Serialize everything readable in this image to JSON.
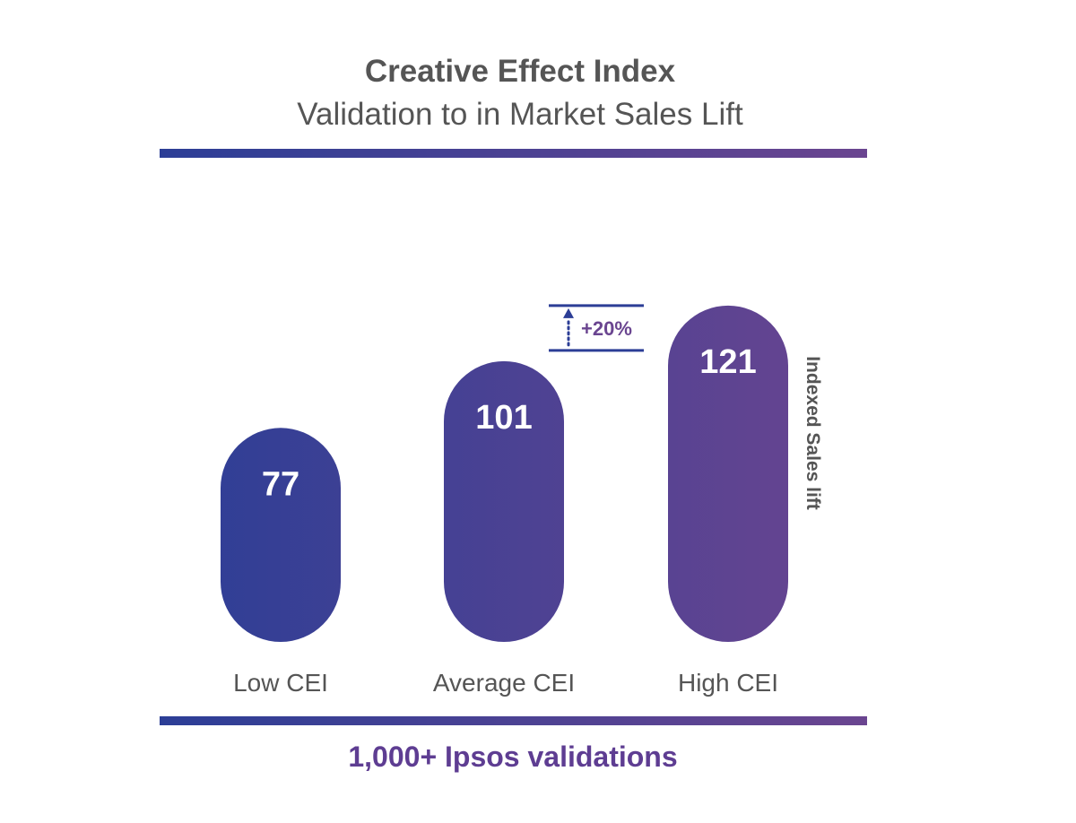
{
  "title": "Creative Effect Index",
  "subtitle": "Validation to in Market Sales Lift",
  "colors": {
    "blue": "#2c3e96",
    "purple": "#6a4590",
    "text_gray": "#555555",
    "footer_purple": "#5e3d92",
    "annotation_purple": "#6a4590"
  },
  "chart_data": {
    "type": "bar",
    "title": "Creative Effect Index",
    "subtitle": "Validation to in Market Sales Lift",
    "categories": [
      "Low CEI",
      "Average CEI",
      "High CEI"
    ],
    "values": [
      77,
      101,
      121
    ],
    "data_labels": [
      "77",
      "101",
      "121"
    ],
    "xlabel": "",
    "ylabel": "Indexed Sales lift",
    "ylim": [
      0,
      130
    ],
    "grid": false,
    "annotation": {
      "text": "+20%",
      "from_category": "Average CEI",
      "to_category": "High CEI"
    }
  },
  "footer": "1,000+ Ipsos validations"
}
